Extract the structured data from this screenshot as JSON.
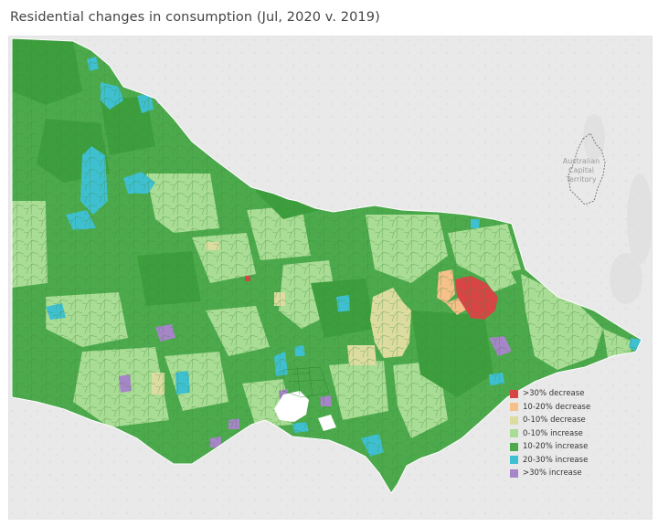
{
  "title": "Residential changes in consumption (Jul, 2020 v. 2019)",
  "territory_label": [
    "Australian",
    "Capital",
    "Territory"
  ],
  "legend": [
    {
      "label": ">30% decrease",
      "color": "#d94545"
    },
    {
      "label": "10-20% decrease",
      "color": "#f5c08a"
    },
    {
      "label": "0-10% decrease",
      "color": "#dcdca0"
    },
    {
      "label": "0-10% increase",
      "color": "#a9dc94"
    },
    {
      "label": "10-20% increase",
      "color": "#4caa4c"
    },
    {
      "label": "20-30% increase",
      "color": "#3fc0d0"
    },
    {
      "label": ">30% increase",
      "color": "#a685c8"
    }
  ]
}
